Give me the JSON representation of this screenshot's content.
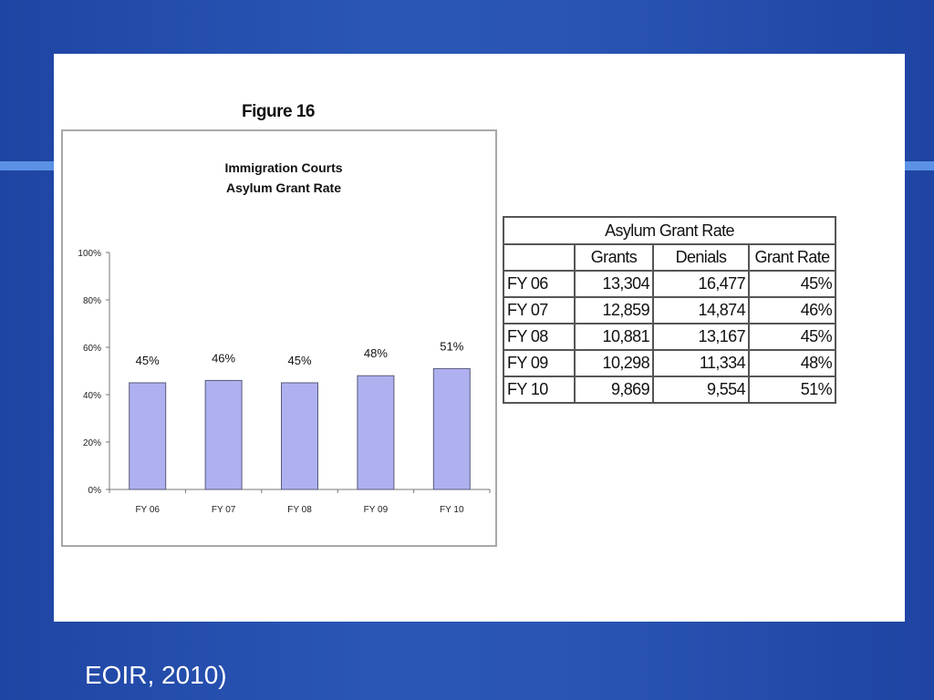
{
  "figure_label": "Figure 16",
  "chart_data": {
    "type": "bar",
    "title_lines": [
      "Immigration Courts",
      "Asylum Grant Rate"
    ],
    "categories": [
      "FY 06",
      "FY 07",
      "FY 08",
      "FY 09",
      "FY 10"
    ],
    "values": [
      45,
      46,
      45,
      48,
      51
    ],
    "data_labels": [
      "45%",
      "46%",
      "45%",
      "48%",
      "51%"
    ],
    "ylim": [
      0,
      100
    ],
    "y_ticks": [
      0,
      20,
      40,
      60,
      80,
      100
    ],
    "y_tick_labels": [
      "0%",
      "20%",
      "40%",
      "60%",
      "80%",
      "100%"
    ],
    "xlabel": "",
    "ylabel": "",
    "grid": false,
    "bar_color": "#aeb0f0",
    "bar_edge_color": "#5a5a7a"
  },
  "table": {
    "caption": "Asylum Grant Rate",
    "headers": [
      "",
      "Grants",
      "Denials",
      "Grant Rate"
    ],
    "rows": [
      [
        "FY 06",
        "13,304",
        "16,477",
        "45%"
      ],
      [
        "FY 07",
        "12,859",
        "14,874",
        "46%"
      ],
      [
        "FY 08",
        "10,881",
        "13,167",
        "45%"
      ],
      [
        "FY 09",
        "10,298",
        "11,334",
        "48%"
      ],
      [
        "FY 10",
        "9,869",
        "9,554",
        "51%"
      ]
    ]
  },
  "source_note": "EOIR, 2010)"
}
